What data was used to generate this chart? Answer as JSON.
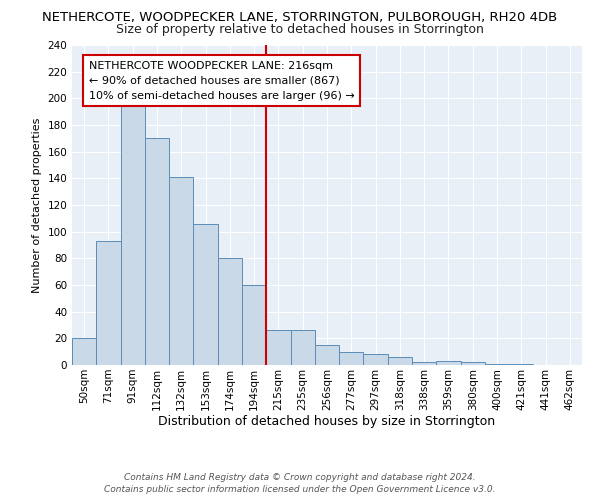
{
  "title": "NETHERCOTE, WOODPECKER LANE, STORRINGTON, PULBOROUGH, RH20 4DB",
  "subtitle": "Size of property relative to detached houses in Storrington",
  "xlabel": "Distribution of detached houses by size in Storrington",
  "ylabel": "Number of detached properties",
  "bin_labels": [
    "50sqm",
    "71sqm",
    "91sqm",
    "112sqm",
    "132sqm",
    "153sqm",
    "174sqm",
    "194sqm",
    "215sqm",
    "235sqm",
    "256sqm",
    "277sqm",
    "297sqm",
    "318sqm",
    "338sqm",
    "359sqm",
    "380sqm",
    "400sqm",
    "421sqm",
    "441sqm",
    "462sqm"
  ],
  "bar_heights": [
    20,
    93,
    200,
    170,
    141,
    106,
    80,
    60,
    26,
    26,
    15,
    10,
    8,
    6,
    2,
    3,
    2,
    1,
    1,
    0,
    0
  ],
  "bar_color": "#c9d9e8",
  "bar_edge_color": "#5b8db8",
  "vline_color": "#cc0000",
  "annotation_line1": "NETHERCOTE WOODPECKER LANE: 216sqm",
  "annotation_line2": "← 90% of detached houses are smaller (867)",
  "annotation_line3": "10% of semi-detached houses are larger (96) →",
  "footer1": "Contains HM Land Registry data © Crown copyright and database right 2024.",
  "footer2": "Contains public sector information licensed under the Open Government Licence v3.0.",
  "ylim": [
    0,
    240
  ],
  "yticks": [
    0,
    20,
    40,
    60,
    80,
    100,
    120,
    140,
    160,
    180,
    200,
    220,
    240
  ],
  "vline_bar_index": 8,
  "title_fontsize": 9.5,
  "subtitle_fontsize": 9,
  "xlabel_fontsize": 9,
  "ylabel_fontsize": 8,
  "tick_fontsize": 7.5,
  "annotation_fontsize": 8,
  "footer_fontsize": 6.5
}
